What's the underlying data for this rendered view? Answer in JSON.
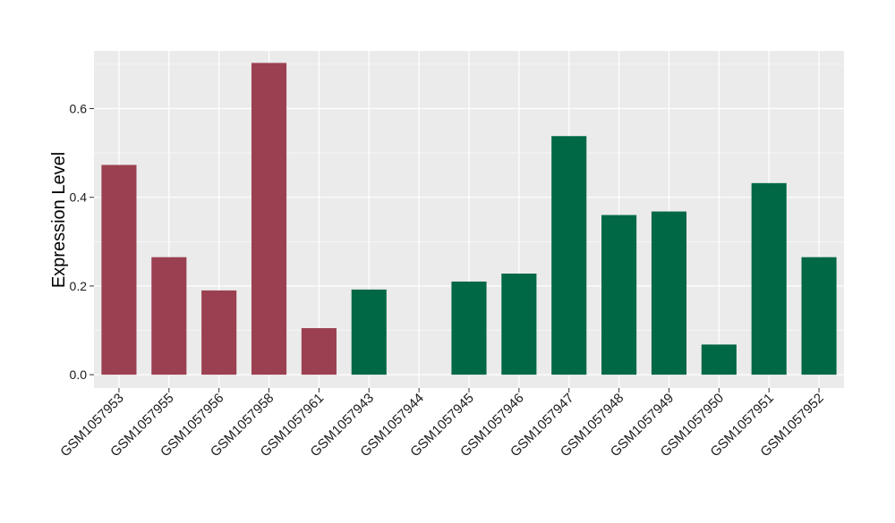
{
  "chart_data": {
    "type": "bar",
    "ylabel": "Expression Level",
    "xlabel": "",
    "categories": [
      "GSM1057953",
      "GSM1057955",
      "GSM1057956",
      "GSM1057958",
      "GSM1057961",
      "GSM1057943",
      "GSM1057944",
      "GSM1057945",
      "GSM1057946",
      "GSM1057947",
      "GSM1057948",
      "GSM1057949",
      "GSM1057950",
      "GSM1057951",
      "GSM1057952"
    ],
    "values": [
      0.473,
      0.265,
      0.19,
      0.703,
      0.105,
      0.192,
      0.0,
      0.21,
      0.228,
      0.538,
      0.36,
      0.368,
      0.068,
      0.432,
      0.265
    ],
    "groups": [
      "a",
      "a",
      "a",
      "a",
      "a",
      "b",
      "b",
      "b",
      "b",
      "b",
      "b",
      "b",
      "b",
      "b",
      "b"
    ],
    "group_colors": {
      "a": "#9b4050",
      "b": "#006844"
    },
    "ylim": [
      -0.03,
      0.73
    ],
    "yticks": [
      0.0,
      0.2,
      0.4,
      0.6
    ],
    "ytick_labels": [
      "0.0",
      "0.2",
      "0.4",
      "0.6"
    ],
    "panel_background": "#ebebeb",
    "gridline_color": "#ffffff",
    "grid": true
  }
}
